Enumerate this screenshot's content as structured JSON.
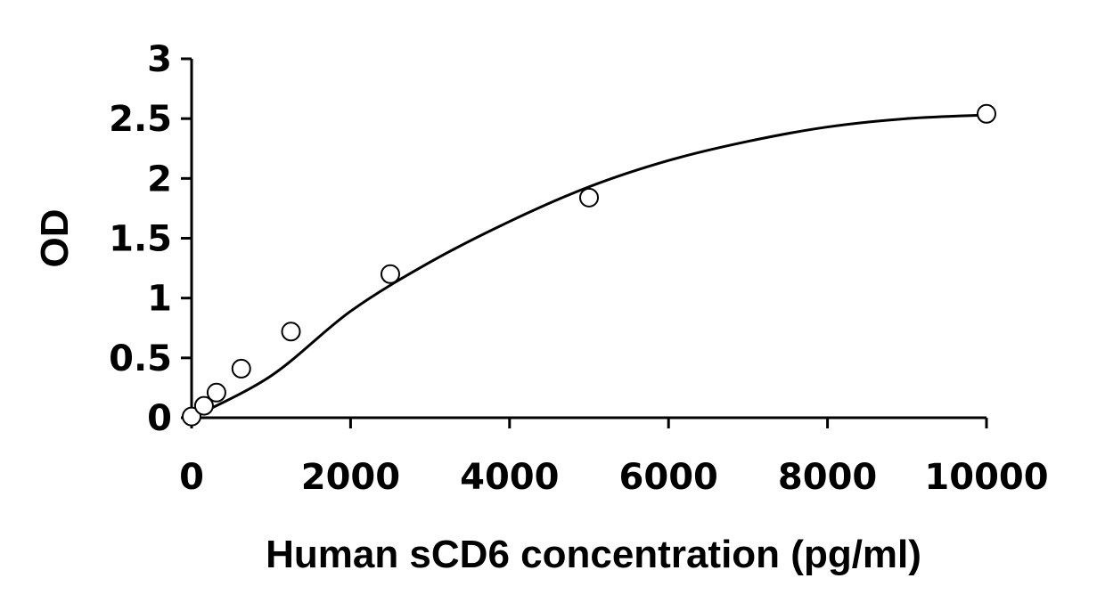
{
  "chart_data": {
    "type": "scatter",
    "title": "",
    "xlabel": "Human sCD6 concentration (pg/ml)",
    "ylabel": "OD",
    "xlim": [
      0,
      10000
    ],
    "ylim": [
      0,
      3
    ],
    "x_ticks": [
      0,
      2000,
      4000,
      6000,
      8000,
      10000
    ],
    "x_tick_labels": [
      "0",
      "2000",
      "4000",
      "6000",
      "8000",
      "10000"
    ],
    "y_ticks": [
      0,
      0.5,
      1,
      1.5,
      2,
      2.5,
      3
    ],
    "y_tick_labels": [
      "0",
      "0.5",
      "1",
      "1.5",
      "2",
      "2.5",
      "3"
    ],
    "grid": false,
    "legend": "none",
    "series": [
      {
        "marker": "open-circle",
        "x": [
          0,
          156,
          313,
          625,
          1250,
          2500,
          5000,
          10000
        ],
        "y": [
          0.01,
          0.1,
          0.21,
          0.41,
          0.72,
          1.2,
          1.84,
          2.54
        ]
      }
    ],
    "fit_curve": {
      "type": "polynomial",
      "x": [
        0,
        1000,
        2000,
        3000,
        4000,
        5000,
        6000,
        7000,
        8000,
        9000,
        10000
      ],
      "y": [
        0.0,
        0.35,
        0.89,
        1.3,
        1.64,
        1.93,
        2.15,
        2.31,
        2.43,
        2.5,
        2.53
      ]
    },
    "colors": {
      "axis": "#000000",
      "curve": "#000000",
      "marker_stroke": "#000000",
      "marker_fill": "#ffffff",
      "background": "#ffffff"
    }
  }
}
